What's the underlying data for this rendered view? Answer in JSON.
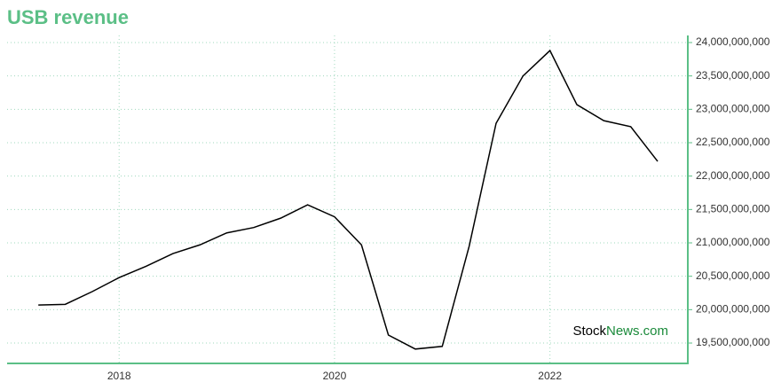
{
  "chart_data": {
    "type": "line",
    "title": "USB revenue",
    "watermark_parts": [
      "Stock",
      "News.com"
    ],
    "x": [
      2017.25,
      2017.5,
      2017.75,
      2018,
      2018.25,
      2018.5,
      2018.75,
      2019,
      2019.25,
      2019.5,
      2019.75,
      2020,
      2020.25,
      2020.5,
      2020.75,
      2021,
      2021.25,
      2021.5,
      2021.75,
      2022,
      2022.25,
      2022.5,
      2022.75,
      2023
    ],
    "series": [
      {
        "color": "#000000",
        "values": [
          20070000000,
          20080000000,
          20270000000,
          20480000000,
          20650000000,
          20840000000,
          20970000000,
          21150000000,
          21230000000,
          21370000000,
          21570000000,
          21390000000,
          20970000000,
          19620000000,
          19410000000,
          19450000000,
          20950000000,
          22790000000,
          23500000000,
          23880000000,
          23070000000,
          22830000000,
          22740000000,
          22220000000
        ]
      }
    ],
    "xlim": [
      2016.96,
      2023.28
    ],
    "xticks": [
      2018,
      2020,
      2022
    ],
    "ylim": [
      19195000000,
      24106000000
    ],
    "yticks": [
      {
        "value": 19500000000,
        "label": "19,500,000,000"
      },
      {
        "value": 20000000000,
        "label": "20,000,000,000"
      },
      {
        "value": 20500000000,
        "label": "20,500,000,000"
      },
      {
        "value": 21000000000,
        "label": "21,000,000,000"
      },
      {
        "value": 21500000000,
        "label": "21,500,000,000"
      },
      {
        "value": 22000000000,
        "label": "22,000,000,000"
      },
      {
        "value": 22500000000,
        "label": "22,500,000,000"
      },
      {
        "value": 23000000000,
        "label": "23,000,000,000"
      },
      {
        "value": 23500000000,
        "label": "23,500,000,000"
      },
      {
        "value": 24000000000,
        "label": "24,000,000,000"
      }
    ],
    "grid": true,
    "axis_color": "#5bbf86"
  }
}
